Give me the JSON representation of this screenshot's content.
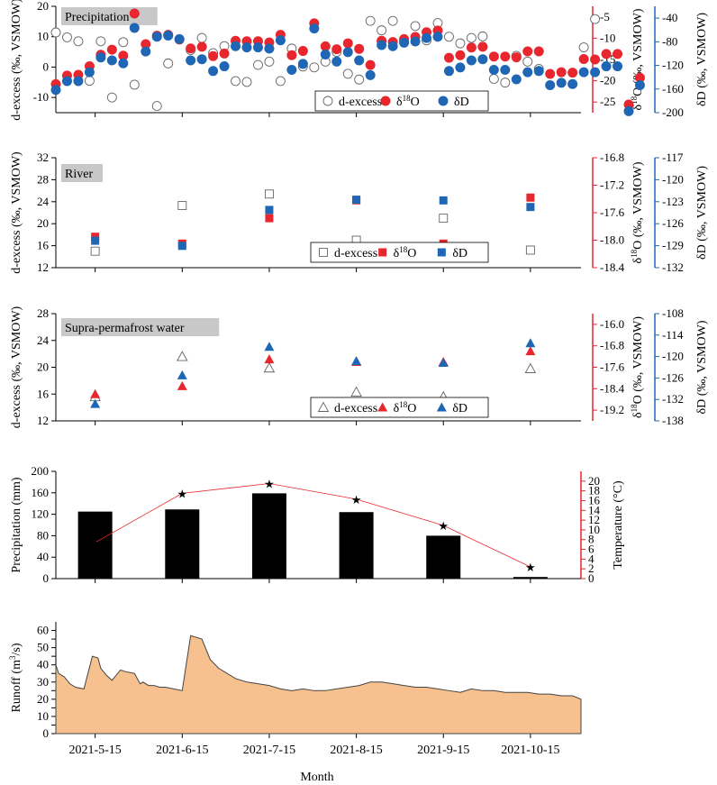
{
  "x_axis": {
    "label": "Month",
    "tick_labels": [
      "2021-5-15",
      "2021-6-15",
      "2021-7-15",
      "2021-8-15",
      "2021-9-15",
      "2021-10-15"
    ]
  },
  "colors": {
    "red": "#e8262d",
    "blue": "#1f66b5",
    "gray": "#666666",
    "runoff_fill": "#f6c08f"
  },
  "chart_data": [
    {
      "type": "scatter",
      "title": "Precipitation",
      "ylabel": "d-excess (‰, VSMOW)",
      "ylim": [
        -15,
        20
      ],
      "yticks": [
        "-10",
        "0",
        "10",
        "20"
      ],
      "y2label": "δ18O (‰, VSMOW)",
      "y2lim": [
        -27.5,
        -2.5
      ],
      "y2ticks": [
        "-25",
        "-20",
        "-15",
        "-10",
        "-5"
      ],
      "y3label": "δD (‰, VSMOW)",
      "y3lim": [
        -200,
        -20
      ],
      "y3ticks": [
        "-200",
        "-160",
        "-120",
        "-80",
        "-40"
      ],
      "legend": [
        "d-excess",
        "δ18O",
        "δD"
      ],
      "x_days": [
        0,
        4,
        8,
        12,
        16,
        20,
        24,
        28,
        32,
        36,
        40,
        44,
        48,
        52,
        56,
        60,
        64,
        68,
        72,
        76,
        80,
        84,
        88,
        92,
        96,
        100,
        104,
        108,
        112,
        116,
        120,
        124,
        128,
        132,
        136,
        140,
        144,
        148,
        152,
        156,
        160,
        164,
        168,
        172,
        176,
        180,
        184,
        188,
        192,
        196,
        200,
        204,
        208,
        212,
        216,
        220,
        224
      ],
      "d_excess": [
        11.4,
        9.8,
        8.5,
        -4.5,
        8.5,
        -10,
        8.2,
        -5.8,
        null,
        -12.8,
        1.2,
        null,
        5.6,
        9.6,
        4.6,
        6.9,
        -4.6,
        -4.9,
        0.7,
        1.8,
        -4.6,
        6.1,
        0.2,
        -0.1,
        1.8,
        5.0,
        -2.2,
        -4.1,
        15.2,
        12.1,
        15.2,
        8.8,
        13.5,
        8.8,
        14.5,
        10.0,
        7.8,
        9.6,
        10.1,
        -3.9,
        -5.1,
        3.7,
        1.8,
        -0.6,
        null,
        null,
        null,
        6.5,
        15.8,
        null,
        null,
        null,
        null,
        null,
        null,
        null,
        null
      ],
      "d18O": [
        -20.8,
        -18.8,
        -18.6,
        -16.6,
        -13.9,
        -12.7,
        -14.1,
        -4.2,
        -11.4,
        -9.4,
        -9.2,
        -10.3,
        -12.4,
        -12.0,
        -14.2,
        -13.6,
        -10.6,
        -10.7,
        -10.7,
        -11.0,
        -9.2,
        -14.0,
        -13.0,
        -6.5,
        -11.9,
        -12.6,
        -11.2,
        -12.5,
        -16.3,
        -10.6,
        -10.9,
        -10.2,
        -9.7,
        -8.6,
        -8.2,
        -14.6,
        -14.0,
        -12.2,
        -12.0,
        -14.3,
        -14.3,
        -14.5,
        -13.1,
        -13.1,
        -18.4,
        -18.0,
        -18.1,
        -14.9,
        -15.0,
        -13.7,
        -13.7,
        -25.6,
        -19.3,
        null,
        null,
        null,
        null
      ],
      "dD": [
        -160,
        -145,
        -145,
        -130,
        -105,
        -110,
        -115,
        -55,
        -95,
        -70,
        -68,
        -74,
        -110,
        -108,
        -128,
        -120,
        -86,
        -88,
        -88,
        -90,
        -76,
        -126,
        -116,
        -56,
        -100,
        -112,
        -96,
        -110,
        -135,
        -84,
        -86,
        -80,
        -78,
        -72,
        -70,
        -128,
        -122,
        -110,
        -108,
        -126,
        -126,
        -142,
        -130,
        -128,
        -152,
        -148,
        -150,
        -130,
        -130,
        -120,
        -120,
        -196,
        -152,
        null,
        null,
        null,
        null
      ]
    },
    {
      "type": "scatter",
      "title": "River",
      "ylabel": "d-excess (‰, VSMOW)",
      "ylim": [
        12,
        32
      ],
      "yticks": [
        "12",
        "16",
        "20",
        "24",
        "28",
        "32"
      ],
      "y2label": "δ18O (‰, VSMOW)",
      "y2lim": [
        -18.4,
        -16.8
      ],
      "y2ticks": [
        "-18.4",
        "-18.0",
        "-17.6",
        "-17.2",
        "-16.8"
      ],
      "y3label": "δD (‰, VSMOW)",
      "y3lim": [
        -132,
        -117
      ],
      "y3ticks": [
        "-132",
        "-129",
        "-126",
        "-123",
        "-120",
        "-117"
      ],
      "legend": [
        "d-excess",
        "δ18O",
        "δD"
      ],
      "x_days": [
        14,
        45,
        76,
        107,
        138,
        169
      ],
      "d_excess": [
        15.0,
        23.3,
        25.4,
        17.0,
        21.0,
        15.2
      ],
      "d18O": [
        -17.95,
        -18.05,
        -17.68,
        -17.42,
        -18.05,
        -17.38
      ],
      "dD": [
        -128.2,
        -128.9,
        -124.0,
        -122.6,
        -122.7,
        -123.6
      ]
    },
    {
      "type": "scatter",
      "title": "Supra-permafrost water",
      "ylabel": "d-excess (‰, VSMOW)",
      "ylim": [
        12,
        28
      ],
      "yticks": [
        "12",
        "16",
        "20",
        "24",
        "28"
      ],
      "y2label": "δ18O (‰, VSMOW)",
      "y2lim": [
        -19.6,
        -15.6
      ],
      "y2ticks": [
        "-19.2",
        "-18.4",
        "-17.6",
        "-16.8",
        "-16.0"
      ],
      "y3label": "δD (‰, VSMOW)",
      "y3lim": [
        -138,
        -108
      ],
      "y3ticks": [
        "-138",
        "-132",
        "-126",
        "-120",
        "-114",
        "-108"
      ],
      "legend": [
        "d-excess",
        "δ18O",
        "δD"
      ],
      "x_days": [
        14,
        45,
        76,
        107,
        138,
        169
      ],
      "d_excess": [
        15.6,
        21.6,
        19.9,
        16.3,
        15.6,
        19.8
      ],
      "d18O": [
        -18.6,
        -18.3,
        -17.3,
        -17.4,
        -17.4,
        -17.0
      ],
      "dD": [
        -133.0,
        -125.0,
        -117.0,
        -121.0,
        -121.5,
        -116.0
      ]
    },
    {
      "type": "bar",
      "ylabel": "Precipitation (mm)",
      "ylim": [
        0,
        200
      ],
      "yticks": [
        "0",
        "40",
        "80",
        "120",
        "160",
        "200"
      ],
      "y2label": "Temperature (°C)",
      "y2lim": [
        0,
        22
      ],
      "y2ticks": [
        "0",
        "2",
        "4",
        "6",
        "8",
        "10",
        "12",
        "14",
        "16",
        "18",
        "20"
      ],
      "x_days": [
        14,
        45,
        76,
        107,
        138,
        169
      ],
      "precipitation": [
        125,
        129,
        159,
        124,
        80,
        3
      ],
      "temperature": [
        7.4,
        17.5,
        19.5,
        16.3,
        10.9,
        2.4
      ]
    },
    {
      "type": "area",
      "ylabel": "Runoff (m3/s)",
      "ylim": [
        0,
        65
      ],
      "yticks": [
        "0",
        "5",
        "10",
        "15",
        "20",
        "25",
        "30",
        "35",
        "40",
        "45",
        "50",
        "55",
        "60"
      ],
      "x_days": [
        0,
        1,
        3,
        5,
        7,
        10,
        13,
        15,
        16,
        18,
        20,
        23,
        25,
        28,
        30,
        31,
        33,
        35,
        37,
        39,
        42,
        45,
        48,
        52,
        55,
        58,
        61,
        64,
        68,
        72,
        76,
        80,
        84,
        88,
        92,
        96,
        100,
        104,
        108,
        112,
        116,
        120,
        124,
        128,
        132,
        136,
        140,
        144,
        148,
        152,
        156,
        160,
        164,
        168,
        172,
        176,
        180,
        184,
        187
      ],
      "runoff": [
        40,
        35,
        33,
        29,
        27,
        26,
        45,
        44,
        38,
        34,
        31,
        37,
        36,
        35,
        29,
        30,
        28,
        28,
        27,
        27,
        26,
        25,
        57,
        55,
        43,
        38,
        35,
        32,
        30,
        29,
        28,
        26,
        25,
        26,
        25,
        25,
        26,
        27,
        28,
        30,
        30,
        29,
        28,
        27,
        27,
        26,
        25,
        24,
        26,
        25,
        25,
        24,
        24,
        24,
        23,
        23,
        22,
        22,
        20
      ]
    }
  ]
}
